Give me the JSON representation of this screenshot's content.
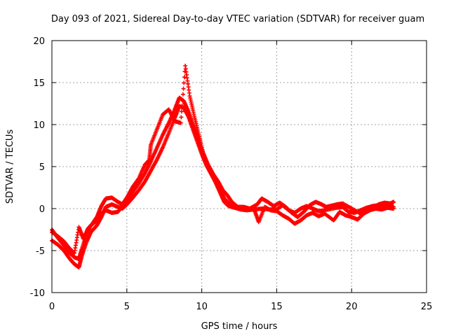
{
  "chart_data": {
    "type": "scatter",
    "title": "Day 093 of 2021, Sidereal Day-to-day VTEC variation (SDTVAR) for receiver guam",
    "xlabel": "GPS time / hours",
    "ylabel": "SDTVAR / TECUs",
    "xlim": [
      0,
      25
    ],
    "ylim": [
      -10,
      20
    ],
    "x_ticks": [
      0,
      5,
      10,
      15,
      20,
      25
    ],
    "y_ticks": [
      -10,
      -5,
      0,
      5,
      10,
      15,
      20
    ],
    "grid": true,
    "marker_color": "#ff0000",
    "series": [
      {
        "name": "track-1",
        "points": [
          [
            0.0,
            -2.5
          ],
          [
            0.4,
            -3.5
          ],
          [
            0.8,
            -4.4
          ],
          [
            1.2,
            -5.3
          ],
          [
            1.5,
            -5.8
          ],
          [
            1.8,
            -6.0
          ],
          [
            2.0,
            -4.8
          ],
          [
            2.3,
            -3.0
          ],
          [
            2.6,
            -2.0
          ],
          [
            3.0,
            -1.4
          ],
          [
            3.3,
            -0.6
          ],
          [
            3.6,
            -0.2
          ],
          [
            4.0,
            -0.5
          ],
          [
            4.4,
            -0.4
          ],
          [
            4.7,
            0.3
          ],
          [
            5.0,
            0.9
          ],
          [
            5.4,
            2.0
          ],
          [
            5.8,
            3.0
          ],
          [
            6.2,
            4.2
          ],
          [
            6.6,
            5.6
          ],
          [
            7.0,
            7.2
          ],
          [
            7.4,
            8.8
          ],
          [
            7.8,
            10.2
          ],
          [
            8.2,
            11.8
          ],
          [
            8.5,
            13.2
          ],
          [
            8.8,
            12.8
          ],
          [
            9.1,
            11.6
          ],
          [
            9.4,
            10.0
          ],
          [
            9.7,
            8.6
          ],
          [
            10.0,
            7.0
          ],
          [
            10.3,
            5.6
          ],
          [
            10.6,
            4.6
          ],
          [
            10.9,
            3.5
          ],
          [
            11.2,
            2.4
          ],
          [
            11.5,
            1.2
          ],
          [
            11.8,
            0.6
          ],
          [
            12.2,
            0.3
          ],
          [
            12.6,
            0.1
          ],
          [
            13.0,
            0.0
          ],
          [
            13.5,
            -0.1
          ],
          [
            14.0,
            0.0
          ],
          [
            14.5,
            -0.1
          ],
          [
            15.0,
            -0.1
          ],
          [
            15.4,
            0.4
          ],
          [
            15.8,
            -0.2
          ],
          [
            16.2,
            -0.5
          ],
          [
            16.6,
            0.0
          ],
          [
            17.0,
            0.3
          ],
          [
            17.4,
            0.0
          ],
          [
            17.8,
            -0.3
          ],
          [
            18.2,
            -0.2
          ],
          [
            19.0,
            0.1
          ],
          [
            19.4,
            0.2
          ],
          [
            19.8,
            -0.4
          ],
          [
            20.2,
            -0.5
          ],
          [
            20.6,
            -0.2
          ],
          [
            21.0,
            0.1
          ],
          [
            21.4,
            0.3
          ],
          [
            21.8,
            0.4
          ],
          [
            22.2,
            0.2
          ],
          [
            22.6,
            0.3
          ],
          [
            22.8,
            0.2
          ]
        ]
      },
      {
        "name": "track-2",
        "points": [
          [
            0.0,
            -3.8
          ],
          [
            0.4,
            -4.3
          ],
          [
            0.8,
            -5.0
          ],
          [
            1.2,
            -6.0
          ],
          [
            1.5,
            -6.6
          ],
          [
            1.8,
            -7.0
          ],
          [
            2.0,
            -5.6
          ],
          [
            2.3,
            -4.0
          ],
          [
            2.6,
            -2.8
          ],
          [
            3.0,
            -2.0
          ],
          [
            3.3,
            -1.0
          ],
          [
            3.6,
            0.2
          ],
          [
            4.0,
            0.5
          ],
          [
            4.4,
            0.2
          ],
          [
            4.7,
            0.0
          ],
          [
            5.0,
            0.5
          ],
          [
            5.4,
            1.3
          ],
          [
            5.8,
            2.2
          ],
          [
            6.2,
            3.2
          ],
          [
            6.6,
            4.5
          ],
          [
            7.0,
            5.8
          ],
          [
            7.4,
            7.3
          ],
          [
            7.8,
            9.0
          ],
          [
            8.2,
            10.8
          ],
          [
            8.5,
            12.2
          ],
          [
            8.8,
            12.0
          ],
          [
            9.1,
            11.0
          ],
          [
            9.4,
            9.5
          ],
          [
            9.7,
            8.0
          ],
          [
            10.0,
            6.5
          ],
          [
            10.3,
            5.2
          ],
          [
            10.6,
            4.2
          ],
          [
            10.9,
            3.2
          ],
          [
            11.2,
            2.0
          ],
          [
            11.5,
            0.8
          ],
          [
            11.8,
            0.3
          ],
          [
            12.2,
            0.1
          ],
          [
            12.6,
            -0.1
          ],
          [
            13.0,
            -0.2
          ],
          [
            13.5,
            -0.1
          ],
          [
            13.8,
            -1.6
          ],
          [
            14.2,
            0.2
          ],
          [
            14.6,
            -0.2
          ],
          [
            15.0,
            -0.3
          ],
          [
            15.4,
            -0.8
          ],
          [
            15.8,
            -1.2
          ],
          [
            16.2,
            -1.8
          ],
          [
            16.6,
            -1.4
          ],
          [
            17.0,
            -0.8
          ],
          [
            17.4,
            -0.5
          ],
          [
            17.8,
            -0.9
          ],
          [
            18.2,
            -0.6
          ],
          [
            18.8,
            -1.4
          ],
          [
            19.2,
            -0.4
          ],
          [
            19.6,
            -0.8
          ],
          [
            20.0,
            -1.0
          ],
          [
            20.4,
            -1.3
          ],
          [
            20.8,
            -0.6
          ],
          [
            21.2,
            -0.2
          ],
          [
            21.6,
            0.0
          ],
          [
            22.0,
            -0.1
          ],
          [
            22.4,
            0.1
          ],
          [
            22.8,
            0.0
          ]
        ]
      },
      {
        "name": "track-3",
        "points": [
          [
            0.0,
            -2.8
          ],
          [
            0.4,
            -3.3
          ],
          [
            0.8,
            -3.9
          ],
          [
            1.2,
            -4.8
          ],
          [
            1.5,
            -5.3
          ],
          [
            1.8,
            -2.2
          ],
          [
            2.1,
            -3.6
          ],
          [
            2.4,
            -2.4
          ],
          [
            2.7,
            -1.8
          ],
          [
            3.0,
            -1.0
          ],
          [
            3.3,
            0.3
          ],
          [
            3.6,
            1.2
          ],
          [
            4.0,
            1.3
          ],
          [
            4.4,
            0.8
          ],
          [
            4.7,
            0.5
          ],
          [
            5.0,
            1.3
          ],
          [
            5.4,
            2.6
          ],
          [
            5.8,
            3.6
          ],
          [
            6.2,
            5.2
          ],
          [
            6.5,
            5.8
          ],
          [
            6.6,
            7.6
          ],
          [
            7.0,
            9.4
          ],
          [
            7.4,
            11.2
          ],
          [
            7.8,
            11.8
          ],
          [
            8.2,
            10.4
          ],
          [
            8.6,
            10.2
          ],
          [
            8.9,
            17.0
          ],
          [
            9.2,
            13.4
          ],
          [
            9.5,
            11.0
          ],
          [
            9.8,
            8.8
          ],
          [
            10.1,
            6.6
          ],
          [
            10.4,
            5.3
          ],
          [
            10.8,
            4.0
          ],
          [
            11.1,
            3.2
          ],
          [
            11.4,
            2.2
          ],
          [
            11.7,
            1.6
          ],
          [
            12.0,
            0.8
          ],
          [
            12.4,
            0.2
          ],
          [
            12.8,
            0.2
          ],
          [
            13.2,
            0.0
          ],
          [
            13.7,
            0.5
          ],
          [
            14.0,
            1.2
          ],
          [
            14.4,
            0.8
          ],
          [
            14.8,
            0.3
          ],
          [
            15.2,
            0.7
          ],
          [
            15.6,
            0.2
          ],
          [
            16.0,
            -0.5
          ],
          [
            16.4,
            -1.0
          ],
          [
            16.8,
            -0.4
          ],
          [
            17.2,
            0.4
          ],
          [
            17.6,
            0.8
          ],
          [
            18.0,
            0.5
          ],
          [
            18.3,
            0.2
          ],
          [
            19.0,
            0.5
          ],
          [
            19.4,
            0.6
          ],
          [
            19.8,
            0.2
          ],
          [
            20.2,
            -0.2
          ],
          [
            20.6,
            -0.6
          ],
          [
            21.0,
            -0.4
          ],
          [
            21.4,
            0.0
          ],
          [
            21.8,
            0.5
          ],
          [
            22.2,
            0.7
          ],
          [
            22.6,
            0.6
          ],
          [
            22.8,
            0.8
          ]
        ]
      }
    ]
  }
}
